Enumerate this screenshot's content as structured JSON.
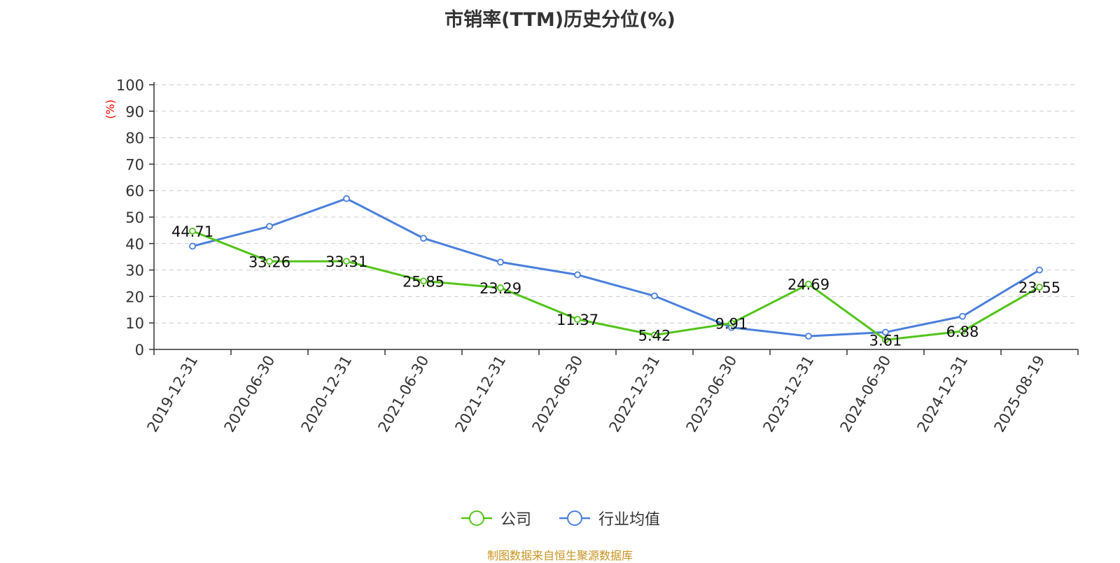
{
  "title": "市销率(TTM)历史分位(%)",
  "footer": "制图数据来自恒生聚源数据库",
  "colors": {
    "company": "#52c41a",
    "industry": "#4a7fdc",
    "ylabel": "#ff0000",
    "footer": "#c8931f"
  },
  "chart_data": {
    "type": "line",
    "title": "市销率(TTM)历史分位(%)",
    "xlabel": "",
    "ylabel": "(%)",
    "ylim": [
      0,
      100
    ],
    "yticks": [
      0,
      10,
      20,
      30,
      40,
      50,
      60,
      70,
      80,
      90,
      100
    ],
    "grid": true,
    "legend_position": "bottom",
    "categories": [
      "2019-12-31",
      "2020-06-30",
      "2020-12-31",
      "2021-06-30",
      "2021-12-31",
      "2022-06-30",
      "2022-12-31",
      "2023-06-30",
      "2023-12-31",
      "2024-06-30",
      "2024-12-31",
      "2025-08-19"
    ],
    "series": [
      {
        "name": "公司",
        "color": "#52c41a",
        "values": [
          44.71,
          33.26,
          33.31,
          25.85,
          23.29,
          11.37,
          5.42,
          9.91,
          24.69,
          3.61,
          6.88,
          23.55
        ],
        "labels": [
          "44.71",
          "33.26",
          "33.31",
          "25.85",
          "23.29",
          "11.37",
          "5.42",
          "9.91",
          "24.69",
          "3.61",
          "6.88",
          "23.55"
        ]
      },
      {
        "name": "行业均值",
        "color": "#4a7fdc",
        "values": [
          39.0,
          46.5,
          57.0,
          42.0,
          33.0,
          28.2,
          20.2,
          8.3,
          5.0,
          6.5,
          12.5,
          30.0
        ]
      }
    ]
  }
}
